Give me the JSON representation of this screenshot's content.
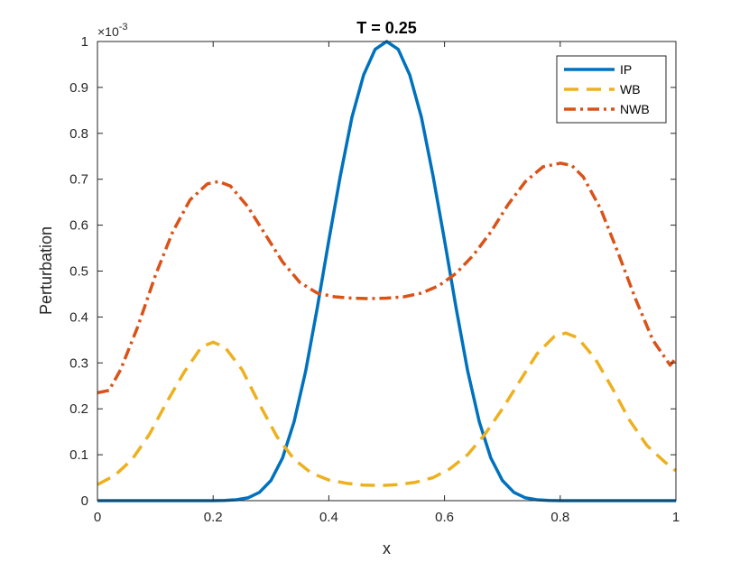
{
  "chart_data": {
    "type": "line",
    "title": "T = 0.25",
    "xlabel": "x",
    "ylabel": "Perturbation",
    "y_exponent_label": "×10",
    "y_exponent_power": "-3",
    "xlim": [
      0,
      1
    ],
    "ylim": [
      0,
      1
    ],
    "x_ticks": [
      "0",
      "0.2",
      "0.4",
      "0.6",
      "0.8",
      "1"
    ],
    "y_ticks": [
      "0",
      "0.1",
      "0.2",
      "0.3",
      "0.4",
      "0.5",
      "0.6",
      "0.7",
      "0.8",
      "0.9",
      "1"
    ],
    "grid": false,
    "legend_position": "top-right",
    "series": [
      {
        "name": "IP",
        "color": "#0072BD",
        "style": "solid",
        "x": [
          0,
          0.05,
          0.1,
          0.15,
          0.2,
          0.22,
          0.24,
          0.26,
          0.28,
          0.3,
          0.32,
          0.34,
          0.36,
          0.38,
          0.4,
          0.42,
          0.44,
          0.46,
          0.48,
          0.5,
          0.52,
          0.54,
          0.56,
          0.58,
          0.6,
          0.62,
          0.64,
          0.66,
          0.68,
          0.7,
          0.72,
          0.74,
          0.76,
          0.78,
          0.8,
          0.85,
          0.9,
          0.95,
          1
        ],
        "y": [
          0,
          0,
          0,
          0,
          0,
          0.0005,
          0.002,
          0.006,
          0.018,
          0.044,
          0.093,
          0.172,
          0.283,
          0.42,
          0.567,
          0.708,
          0.835,
          0.927,
          0.983,
          1.0,
          0.983,
          0.927,
          0.835,
          0.708,
          0.567,
          0.42,
          0.283,
          0.172,
          0.093,
          0.044,
          0.018,
          0.006,
          0.002,
          0.0005,
          0,
          0,
          0,
          0,
          0
        ]
      },
      {
        "name": "WB",
        "color": "#EDB120",
        "style": "dashed",
        "x": [
          0,
          0.03,
          0.06,
          0.09,
          0.12,
          0.15,
          0.18,
          0.2,
          0.22,
          0.25,
          0.28,
          0.31,
          0.34,
          0.37,
          0.4,
          0.43,
          0.46,
          0.49,
          0.52,
          0.55,
          0.58,
          0.61,
          0.64,
          0.67,
          0.7,
          0.73,
          0.76,
          0.79,
          0.81,
          0.83,
          0.86,
          0.89,
          0.92,
          0.95,
          0.98,
          1
        ],
        "y": [
          0.035,
          0.055,
          0.09,
          0.145,
          0.215,
          0.28,
          0.335,
          0.345,
          0.335,
          0.285,
          0.21,
          0.14,
          0.09,
          0.06,
          0.045,
          0.038,
          0.034,
          0.033,
          0.035,
          0.04,
          0.05,
          0.07,
          0.1,
          0.145,
          0.2,
          0.26,
          0.32,
          0.358,
          0.365,
          0.355,
          0.31,
          0.245,
          0.175,
          0.12,
          0.085,
          0.065
        ]
      },
      {
        "name": "NWB",
        "color": "#D95319",
        "style": "dashdot",
        "x": [
          0,
          0.02,
          0.04,
          0.07,
          0.1,
          0.13,
          0.16,
          0.19,
          0.21,
          0.23,
          0.26,
          0.29,
          0.32,
          0.35,
          0.38,
          0.41,
          0.44,
          0.47,
          0.5,
          0.53,
          0.56,
          0.59,
          0.62,
          0.65,
          0.68,
          0.71,
          0.74,
          0.77,
          0.8,
          0.82,
          0.84,
          0.87,
          0.9,
          0.93,
          0.96,
          0.99,
          1
        ],
        "y": [
          0.235,
          0.24,
          0.285,
          0.38,
          0.49,
          0.585,
          0.655,
          0.69,
          0.695,
          0.685,
          0.64,
          0.58,
          0.52,
          0.475,
          0.452,
          0.444,
          0.441,
          0.44,
          0.441,
          0.444,
          0.452,
          0.468,
          0.495,
          0.535,
          0.585,
          0.645,
          0.695,
          0.727,
          0.735,
          0.73,
          0.705,
          0.635,
          0.54,
          0.44,
          0.35,
          0.295,
          0.31
        ]
      }
    ]
  }
}
